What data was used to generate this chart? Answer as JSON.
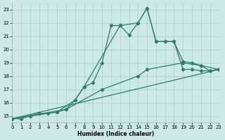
{
  "xlabel": "Humidex (Indice chaleur)",
  "bg_color": "#cce8e8",
  "grid_color": "#aacccc",
  "line_color": "#2e7d6e",
  "xlim": [
    0,
    23
  ],
  "ylim": [
    14.5,
    23.5
  ],
  "yticks": [
    15,
    16,
    17,
    18,
    19,
    20,
    21,
    22,
    23
  ],
  "xticks": [
    0,
    1,
    2,
    3,
    4,
    5,
    6,
    7,
    8,
    9,
    10,
    11,
    12,
    13,
    14,
    15,
    16,
    17,
    18,
    19,
    20,
    21,
    22,
    23
  ],
  "line1_x": [
    0,
    1,
    2,
    3,
    4,
    5,
    6,
    7,
    8,
    9,
    10,
    11,
    12,
    13,
    14,
    15,
    16,
    17,
    18,
    19,
    20,
    21,
    22,
    23
  ],
  "line1_y": [
    14.8,
    14.8,
    15.0,
    15.2,
    15.2,
    15.3,
    15.5,
    16.2,
    17.2,
    17.5,
    19.0,
    21.8,
    21.8,
    21.1,
    22.0,
    23.1,
    20.6,
    20.6,
    20.6,
    18.5,
    18.5,
    18.4,
    18.4,
    18.5
  ],
  "line2_x": [
    0,
    5,
    7,
    8,
    12,
    14,
    15,
    16,
    17,
    18,
    19,
    20,
    21,
    22,
    23
  ],
  "line2_y": [
    14.8,
    15.3,
    16.2,
    17.2,
    21.8,
    22.0,
    23.1,
    20.6,
    20.6,
    20.6,
    19.1,
    19.0,
    18.8,
    18.4,
    18.5
  ],
  "line3_x": [
    0,
    6,
    10,
    14,
    15,
    19,
    21,
    23
  ],
  "line3_y": [
    14.8,
    15.5,
    17.0,
    18.0,
    18.5,
    19.0,
    18.8,
    18.5
  ],
  "line4_x": [
    0,
    23
  ],
  "line4_y": [
    14.8,
    18.5
  ],
  "linewidth": 0.9,
  "marker_size": 2.2
}
